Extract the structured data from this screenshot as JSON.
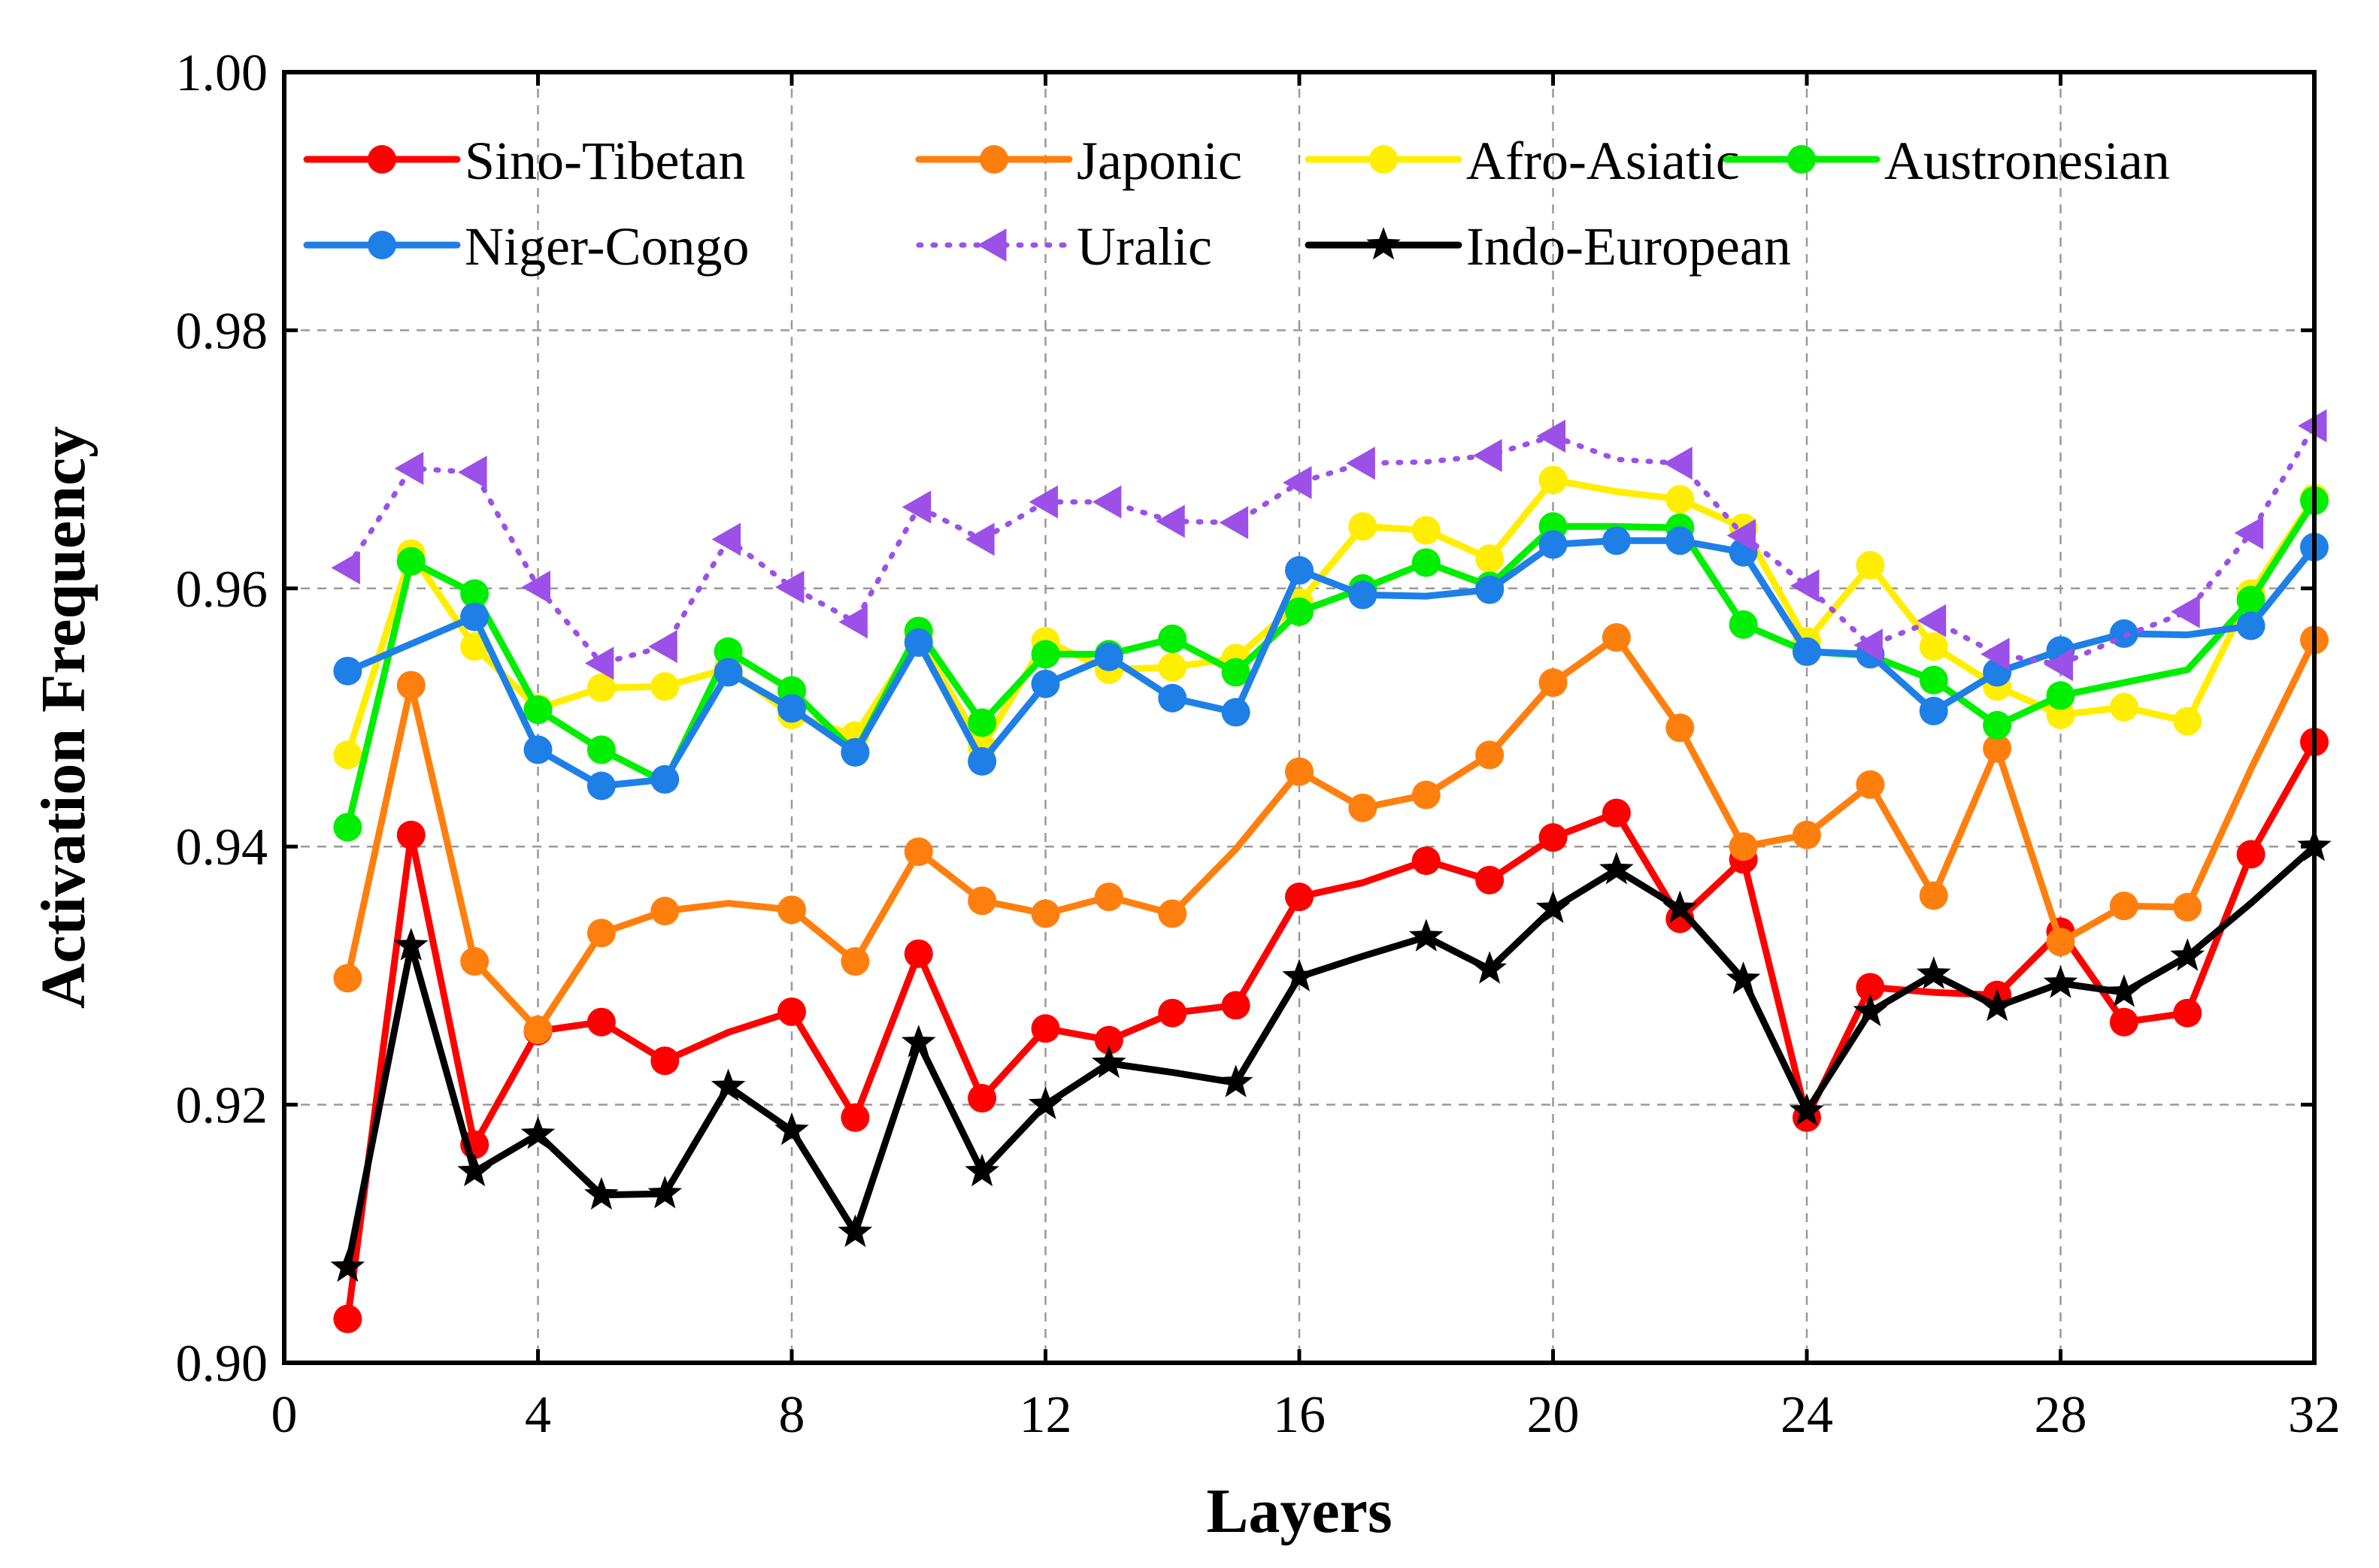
{
  "chart_data": {
    "type": "line",
    "title": "",
    "xlabel": "Layers",
    "ylabel": "Activation Frequency",
    "xlim": [
      0,
      32
    ],
    "ylim": [
      0.9,
      1.0
    ],
    "xticks": [
      0,
      4,
      8,
      12,
      16,
      20,
      24,
      28,
      32
    ],
    "xtick_labels": [
      "0",
      "4",
      "8",
      "12",
      "16",
      "20",
      "24",
      "28",
      "32"
    ],
    "yticks": [
      0.9,
      0.92,
      0.94,
      0.96,
      0.98,
      1.0
    ],
    "ytick_labels": [
      "0.90",
      "0.92",
      "0.94",
      "0.96",
      "0.98",
      "1.00"
    ],
    "grid": true,
    "legend_position": "top",
    "x": [
      1,
      2,
      3,
      4,
      5,
      6,
      7,
      8,
      9,
      10,
      11,
      12,
      13,
      14,
      15,
      16,
      17,
      18,
      19,
      20,
      21,
      22,
      23,
      24,
      25,
      26,
      27,
      28,
      29,
      30,
      31,
      32
    ],
    "series": [
      {
        "name": "Sino-Tibetan",
        "color": "#ff0000",
        "marker": "circle",
        "line": "solid",
        "markers_at": [
          1,
          2,
          3,
          4,
          5,
          6,
          8,
          9,
          10,
          11,
          12,
          13,
          14,
          15,
          16,
          18,
          19,
          20,
          21,
          22,
          23,
          24,
          25,
          27,
          28,
          29,
          30,
          31,
          32
        ],
        "values": [
          0.9034,
          0.9409,
          0.9169,
          0.9257,
          0.9264,
          0.9234,
          0.9256,
          0.9272,
          0.919,
          0.9317,
          0.9205,
          0.9259,
          0.925,
          0.9271,
          0.9277,
          0.9361,
          0.9372,
          0.9389,
          0.9374,
          0.9407,
          0.9426,
          0.9344,
          0.939,
          0.919,
          0.9291,
          0.9287,
          0.9285,
          0.9334,
          0.9264,
          0.9271,
          0.9394,
          0.9481
        ]
      },
      {
        "name": "Japonic",
        "color": "#ff7f0e",
        "marker": "circle",
        "line": "solid",
        "markers_at": [
          1,
          2,
          3,
          4,
          5,
          6,
          8,
          9,
          10,
          11,
          12,
          13,
          14,
          16,
          17,
          18,
          19,
          20,
          21,
          22,
          23,
          24,
          25,
          26,
          27,
          28,
          29,
          30,
          32
        ],
        "values": [
          0.9298,
          0.9525,
          0.9311,
          0.9258,
          0.9333,
          0.935,
          0.9356,
          0.9351,
          0.9311,
          0.9396,
          0.9358,
          0.9348,
          0.9361,
          0.9348,
          0.9398,
          0.9458,
          0.943,
          0.944,
          0.9471,
          0.9527,
          0.9562,
          0.9492,
          0.94,
          0.9409,
          0.9448,
          0.9362,
          0.9476,
          0.9326,
          0.9354,
          0.9353,
          0.946,
          0.956
        ]
      },
      {
        "name": "Afro-Asiatic",
        "color": "#ffee00",
        "marker": "circle",
        "line": "solid",
        "markers_at": [
          1,
          2,
          3,
          4,
          5,
          6,
          7,
          8,
          9,
          10,
          11,
          12,
          13,
          14,
          15,
          16,
          17,
          18,
          19,
          20,
          22,
          23,
          24,
          25,
          26,
          27,
          28,
          29,
          30,
          31,
          32
        ],
        "values": [
          0.9471,
          0.9627,
          0.9555,
          0.9507,
          0.9523,
          0.9524,
          0.9538,
          0.9502,
          0.9486,
          0.9562,
          0.9477,
          0.9559,
          0.9537,
          0.9539,
          0.9546,
          0.9589,
          0.9648,
          0.9645,
          0.9623,
          0.9684,
          0.9675,
          0.9669,
          0.9647,
          0.9559,
          0.9618,
          0.9555,
          0.9524,
          0.9502,
          0.9508,
          0.9497,
          0.9596,
          0.967
        ]
      },
      {
        "name": "Austronesian",
        "color": "#00ee00",
        "marker": "circle",
        "line": "solid",
        "markers_at": [
          1,
          2,
          3,
          4,
          5,
          7,
          8,
          9,
          10,
          11,
          12,
          13,
          14,
          15,
          16,
          17,
          18,
          19,
          20,
          22,
          23,
          24,
          26,
          27,
          28,
          31,
          32
        ],
        "values": [
          0.9415,
          0.9621,
          0.9596,
          0.9506,
          0.9475,
          0.945,
          0.9551,
          0.9521,
          0.9473,
          0.9567,
          0.9496,
          0.9549,
          0.9549,
          0.9561,
          0.9535,
          0.9582,
          0.96,
          0.962,
          0.9602,
          0.9648,
          0.9648,
          0.9647,
          0.9572,
          0.9551,
          0.9548,
          0.9529,
          0.9494,
          0.9517,
          0.9527,
          0.9537,
          0.9591,
          0.9668
        ]
      },
      {
        "name": "Niger-Congo",
        "color": "#1e7fe6",
        "marker": "circle",
        "line": "solid",
        "markers_at": [
          1,
          3,
          4,
          5,
          6,
          7,
          8,
          9,
          10,
          11,
          12,
          13,
          14,
          15,
          16,
          17,
          19,
          20,
          21,
          22,
          23,
          24,
          25,
          26,
          27,
          28,
          29,
          31,
          32
        ],
        "values": [
          0.9536,
          0.9557,
          0.9578,
          0.9475,
          0.9447,
          0.9452,
          0.9535,
          0.9507,
          0.9473,
          0.9558,
          0.9466,
          0.9526,
          0.9547,
          0.9515,
          0.9504,
          0.9614,
          0.9595,
          0.9594,
          0.9599,
          0.9634,
          0.9637,
          0.9637,
          0.9628,
          0.9551,
          0.9549,
          0.9505,
          0.9535,
          0.9552,
          0.9565,
          0.9564,
          0.9571,
          0.9632
        ]
      },
      {
        "name": "Uralic",
        "color": "#9b50e8",
        "marker": "triangle-left",
        "line": "dotted",
        "markers_at": [
          1,
          2,
          3,
          4,
          5,
          6,
          7,
          8,
          9,
          10,
          11,
          12,
          13,
          14,
          15,
          16,
          17,
          19,
          20,
          22,
          23,
          24,
          25,
          26,
          27,
          28,
          30,
          31,
          32
        ],
        "values": [
          0.9616,
          0.9693,
          0.969,
          0.9601,
          0.9542,
          0.9555,
          0.9638,
          0.9601,
          0.9574,
          0.9663,
          0.9638,
          0.9667,
          0.9667,
          0.9652,
          0.9651,
          0.9682,
          0.9697,
          0.9698,
          0.9703,
          0.9718,
          0.97,
          0.9697,
          0.9641,
          0.9602,
          0.9556,
          0.9575,
          0.9549,
          0.9541,
          0.9563,
          0.9582,
          0.9643,
          0.9726
        ]
      },
      {
        "name": "Indo-European",
        "color": "#000000",
        "marker": "star",
        "line": "solid",
        "markers_at": [
          1,
          2,
          3,
          4,
          5,
          6,
          7,
          8,
          9,
          10,
          11,
          12,
          13,
          15,
          16,
          18,
          19,
          20,
          21,
          22,
          23,
          24,
          25,
          26,
          27,
          28,
          29,
          30,
          32
        ],
        "values": [
          0.9074,
          0.9323,
          0.9148,
          0.9177,
          0.913,
          0.9131,
          0.9214,
          0.918,
          0.9101,
          0.9248,
          0.9148,
          0.92,
          0.9232,
          0.9225,
          0.9217,
          0.9299,
          0.9315,
          0.933,
          0.9305,
          0.9352,
          0.9382,
          0.9352,
          0.9297,
          0.9195,
          0.9272,
          0.9301,
          0.9276,
          0.9294,
          0.9287,
          0.9315,
          0.9356,
          0.94
        ]
      }
    ]
  }
}
